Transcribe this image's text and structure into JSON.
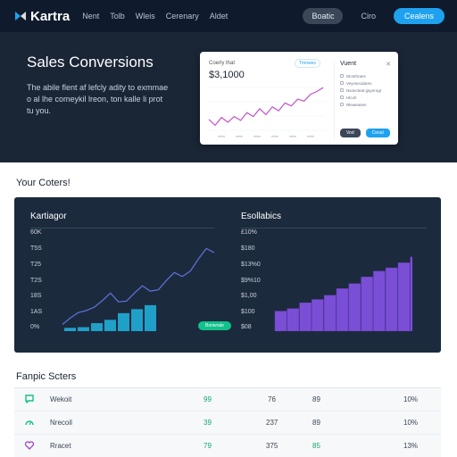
{
  "nav": {
    "brand": "Kartra",
    "links": [
      "Nent",
      "Tolb",
      "Wleis",
      "Cerenary",
      "Aldet"
    ],
    "button_dark": "Boatic",
    "button_plain": "Ciro",
    "button_blue": "Cealens"
  },
  "hero": {
    "title": "Sales Conversions",
    "description": "The abile flent af lefcly adity to exmmae o al lhe comeykil lreon, ton kalle li prot tu you."
  },
  "preview": {
    "label": "Coerly that",
    "value": "$3,1000",
    "badge": "Tmnwes",
    "side_title": "Vuent",
    "items": [
      "Dlonthraes",
      "Veynsecdaren",
      "Nsoecteat gaynrogt",
      "Hlcoh",
      "Rleweanen"
    ],
    "button_dark": "Vod",
    "button_blue": "Ceoal",
    "series": [
      30,
      18,
      34,
      24,
      36,
      28,
      44,
      36,
      52,
      40,
      56,
      48,
      64,
      58,
      72,
      68,
      82,
      88,
      96
    ]
  },
  "section_charts": {
    "title": "Your Coters!"
  },
  "chart_data": [
    {
      "type": "bar",
      "title": "Kartiagor",
      "ticks": [
        "60K",
        "T5S",
        "T25",
        "T2S",
        "18S",
        "1AS",
        "0%"
      ],
      "values": [
        5,
        6,
        12,
        17,
        27,
        33,
        39
      ],
      "line": [
        10,
        20,
        28,
        31,
        36,
        46,
        57,
        44,
        45,
        57,
        68,
        60,
        62,
        76,
        88,
        82,
        90,
        108,
        124,
        118
      ],
      "max": 150,
      "bar_color": "#1fa0c9",
      "cta": "Bonivrale"
    },
    {
      "type": "bar",
      "title": "Esollabics",
      "ticks": [
        "£10%",
        "$180",
        "$13%0",
        "$9%10",
        "$1,00",
        "$100",
        "$08"
      ],
      "values": [
        24,
        27,
        34,
        38,
        43,
        51,
        57,
        65,
        72,
        76,
        82,
        89,
        94,
        100,
        103,
        96
      ],
      "max": 120,
      "bar_color": "#7a4fd6"
    }
  ],
  "section_table": {
    "title": "Fanpic Scters"
  },
  "table": {
    "rows": [
      {
        "icon": "chat-icon",
        "icon_color": "#12c18a",
        "name": "Wekoit",
        "a": "99",
        "a_color": "#12a86e",
        "b": "76",
        "c": "89",
        "c_color": "#3a4555",
        "d": "10%"
      },
      {
        "icon": "gauge-icon",
        "icon_color": "#12c18a",
        "name": "Nrecoil",
        "a": "39",
        "a_color": "#12a86e",
        "b": "237",
        "c": "89",
        "c_color": "#3a4555",
        "d": "10%"
      },
      {
        "icon": "heart-icon",
        "icon_color": "#9b45c9",
        "name": "Rracet",
        "a": "79",
        "a_color": "#12a86e",
        "b": "375",
        "c": "85",
        "c_color": "#12a86e",
        "d": "13%"
      }
    ]
  }
}
